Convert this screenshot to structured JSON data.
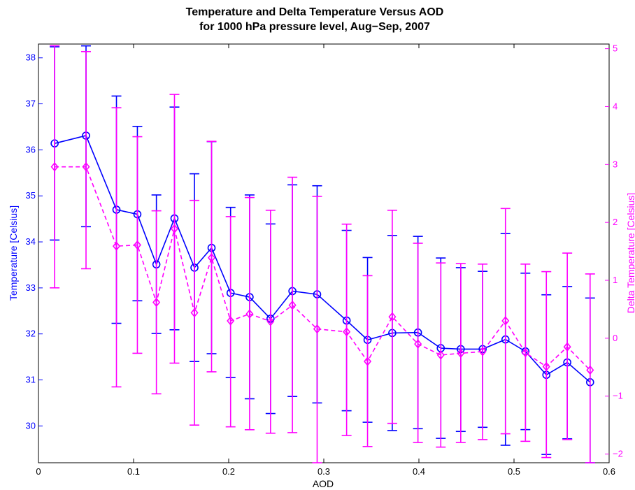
{
  "chart_data": {
    "type": "line",
    "title": "Temperature and Delta Temperature Versus AOD",
    "subtitle": "for 1000 hPa pressure level, Aug−Sep, 2007",
    "xlabel": "AOD",
    "ylabel_left": "Temperature [Celsius]",
    "ylabel_right": "Delta Temperature [Celsius]",
    "xlim": [
      0,
      0.6
    ],
    "ylim_left": [
      29.2,
      38.3
    ],
    "ylim_right": [
      -2.15,
      5.08
    ],
    "x_ticks": [
      0,
      0.1,
      0.2,
      0.3,
      0.4,
      0.5,
      0.6
    ],
    "y_left_ticks": [
      30,
      31,
      32,
      33,
      34,
      35,
      36,
      37,
      38
    ],
    "y_right_ticks": [
      -2,
      -1,
      0,
      1,
      2,
      3,
      4,
      5
    ],
    "grid": false,
    "colors": {
      "temperature": "#0000ff",
      "delta": "#ff00ff",
      "axes": "#000000"
    },
    "series": [
      {
        "name": "Temperature",
        "axis": "left",
        "marker": "circle",
        "line": "solid",
        "x": [
          0.017,
          0.05,
          0.082,
          0.104,
          0.124,
          0.143,
          0.164,
          0.182,
          0.202,
          0.222,
          0.244,
          0.267,
          0.293,
          0.324,
          0.346,
          0.372,
          0.399,
          0.423,
          0.444,
          0.467,
          0.491,
          0.512,
          0.534,
          0.556,
          0.58
        ],
        "y": [
          36.14,
          36.31,
          34.7,
          34.6,
          33.51,
          34.51,
          33.44,
          33.87,
          32.89,
          32.8,
          32.33,
          32.93,
          32.86,
          32.29,
          31.87,
          32.02,
          32.03,
          31.69,
          31.67,
          31.67,
          31.88,
          31.62,
          31.11,
          31.38,
          30.95
        ],
        "err_low": [
          34.04,
          34.33,
          32.23,
          32.72,
          32.01,
          32.09,
          31.4,
          31.57,
          31.05,
          30.59,
          30.27,
          30.64,
          30.5,
          30.33,
          30.08,
          29.9,
          29.94,
          29.73,
          29.88,
          29.97,
          29.58,
          29.92,
          29.38,
          29.72,
          29.1
        ],
        "err_high": [
          38.24,
          38.26,
          37.17,
          36.51,
          35.02,
          36.93,
          35.48,
          36.18,
          34.75,
          35.02,
          34.39,
          35.24,
          35.22,
          34.25,
          33.66,
          34.14,
          34.12,
          33.65,
          33.44,
          33.36,
          34.18,
          33.32,
          32.85,
          33.03,
          32.78
        ]
      },
      {
        "name": "Delta Temperature",
        "axis": "right",
        "marker": "diamond",
        "line": "dashed",
        "x": [
          0.017,
          0.05,
          0.082,
          0.104,
          0.124,
          0.143,
          0.164,
          0.182,
          0.202,
          0.222,
          0.244,
          0.267,
          0.293,
          0.324,
          0.346,
          0.372,
          0.399,
          0.423,
          0.444,
          0.467,
          0.491,
          0.512,
          0.534,
          0.556,
          0.58
        ],
        "y": [
          2.96,
          2.96,
          1.59,
          1.61,
          0.62,
          1.89,
          0.44,
          1.39,
          0.3,
          0.42,
          0.29,
          0.57,
          0.16,
          0.11,
          -0.4,
          0.37,
          -0.1,
          -0.29,
          -0.26,
          -0.23,
          0.3,
          -0.25,
          -0.49,
          -0.15,
          -0.55
        ],
        "err_low": [
          0.87,
          1.2,
          -0.84,
          -0.26,
          -0.96,
          -0.43,
          -1.5,
          -0.58,
          -1.53,
          -1.58,
          -1.64,
          -1.63,
          -2.15,
          -1.68,
          -1.87,
          -1.47,
          -1.8,
          -1.88,
          -1.8,
          -1.75,
          -1.65,
          -1.78,
          -2.06,
          -1.75,
          -2.15
        ],
        "err_high": [
          5.05,
          4.95,
          3.98,
          3.48,
          2.2,
          4.21,
          2.38,
          3.4,
          2.1,
          2.43,
          2.21,
          2.78,
          2.45,
          1.97,
          1.08,
          2.21,
          1.64,
          1.3,
          1.29,
          1.28,
          2.24,
          1.28,
          1.15,
          1.47,
          1.11
        ]
      }
    ]
  }
}
